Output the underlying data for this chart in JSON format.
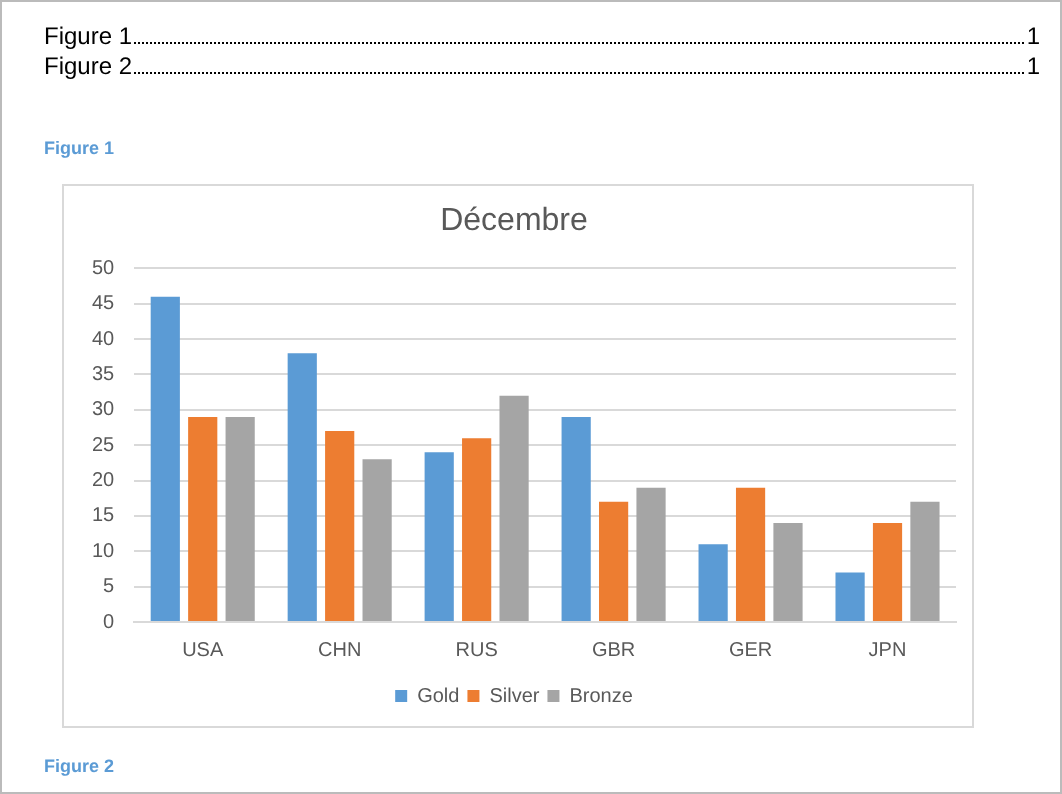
{
  "chart_data": {
    "type": "bar",
    "title": "Décembre",
    "categories": [
      "USA",
      "CHN",
      "RUS",
      "GBR",
      "GER",
      "JPN"
    ],
    "series": [
      {
        "name": "Gold",
        "color": "#5b9bd5",
        "values": [
          46,
          38,
          24,
          29,
          11,
          7
        ]
      },
      {
        "name": "Silver",
        "color": "#ed7d31",
        "values": [
          29,
          27,
          26,
          17,
          19,
          14
        ]
      },
      {
        "name": "Bronze",
        "color": "#a5a5a5",
        "values": [
          29,
          23,
          32,
          19,
          14,
          17
        ]
      }
    ],
    "ylim": [
      0,
      50
    ],
    "yticks": [
      0,
      5,
      10,
      15,
      20,
      25,
      30,
      35,
      40,
      45,
      50
    ],
    "grid": "y",
    "legend": "bottom",
    "annotations": [
      "Figure 1",
      "1",
      "Figure 2",
      "1",
      "Figure 1",
      "Figure 2"
    ]
  }
}
